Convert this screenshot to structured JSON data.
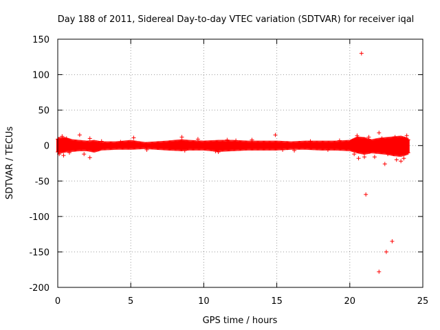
{
  "chart_data": {
    "type": "scatter",
    "title": "Day 188 of 2011, Sidereal Day-to-day VTEC variation (SDTVAR) for receiver iqal",
    "xlabel": "GPS time / hours",
    "ylabel": "SDTVAR / TECUs",
    "xlim": [
      0,
      25
    ],
    "ylim": [
      -200,
      150
    ],
    "xticks": [
      0,
      5,
      10,
      15,
      20,
      25
    ],
    "xtick_labels": [
      "0",
      "5",
      "10",
      "15",
      "20",
      "25"
    ],
    "yticks": [
      -200,
      -150,
      -100,
      -50,
      0,
      50,
      100,
      150
    ],
    "ytick_labels": [
      "-200",
      "-150",
      "-100",
      "-50",
      "0",
      "50",
      "100",
      "150"
    ],
    "grid": true,
    "marker": "+",
    "series": [
      {
        "name": "SDTVAR",
        "color": "#ff0000",
        "band": {
          "x_start": 0.0,
          "x_end": 24.0,
          "step": 0.05,
          "envelope": [
            [
              0.0,
              -9,
              9
            ],
            [
              0.5,
              -7,
              9
            ],
            [
              1.0,
              -6,
              6
            ],
            [
              1.5,
              -5,
              5
            ],
            [
              2.0,
              -5,
              4
            ],
            [
              2.5,
              -7,
              5
            ],
            [
              3.0,
              -4,
              3
            ],
            [
              4.0,
              -3,
              3
            ],
            [
              5.0,
              -3,
              5
            ],
            [
              6.0,
              -2,
              2
            ],
            [
              7.5,
              -4,
              4
            ],
            [
              8.5,
              -5,
              6
            ],
            [
              9.0,
              -4,
              5
            ],
            [
              10.0,
              -4,
              4
            ],
            [
              11.0,
              -6,
              5
            ],
            [
              12.0,
              -5,
              5
            ],
            [
              13.0,
              -4,
              4
            ],
            [
              14.0,
              -4,
              4
            ],
            [
              15.0,
              -4,
              4
            ],
            [
              16.0,
              -3,
              3
            ],
            [
              17.0,
              -3,
              4
            ],
            [
              18.0,
              -4,
              4
            ],
            [
              19.0,
              -4,
              4
            ],
            [
              20.0,
              -5,
              5
            ],
            [
              20.5,
              -8,
              10
            ],
            [
              21.0,
              -10,
              9
            ],
            [
              21.5,
              -8,
              6
            ],
            [
              22.0,
              -9,
              8
            ],
            [
              22.5,
              -10,
              9
            ],
            [
              23.0,
              -12,
              10
            ],
            [
              23.5,
              -13,
              11
            ],
            [
              24.0,
              -10,
              8
            ]
          ]
        },
        "points": [
          {
            "x": 0.1,
            "y": -12
          },
          {
            "x": 0.3,
            "y": 13
          },
          {
            "x": 0.4,
            "y": -14
          },
          {
            "x": 0.6,
            "y": 10
          },
          {
            "x": 0.8,
            "y": -10
          },
          {
            "x": 1.5,
            "y": 15
          },
          {
            "x": 1.8,
            "y": -12
          },
          {
            "x": 2.2,
            "y": 10
          },
          {
            "x": 2.2,
            "y": -17
          },
          {
            "x": 3.0,
            "y": 6
          },
          {
            "x": 4.3,
            "y": 5
          },
          {
            "x": 5.2,
            "y": 11
          },
          {
            "x": 6.1,
            "y": -6
          },
          {
            "x": 8.5,
            "y": 12
          },
          {
            "x": 8.7,
            "y": -7
          },
          {
            "x": 9.6,
            "y": 9
          },
          {
            "x": 10.8,
            "y": -8
          },
          {
            "x": 11.0,
            "y": -9
          },
          {
            "x": 11.6,
            "y": 8
          },
          {
            "x": 12.2,
            "y": 7
          },
          {
            "x": 13.3,
            "y": 8
          },
          {
            "x": 14.9,
            "y": 15
          },
          {
            "x": 15.4,
            "y": -6
          },
          {
            "x": 16.2,
            "y": -7
          },
          {
            "x": 17.3,
            "y": 6
          },
          {
            "x": 18.5,
            "y": -6
          },
          {
            "x": 19.3,
            "y": 7
          },
          {
            "x": 20.3,
            "y": -12
          },
          {
            "x": 20.5,
            "y": 14
          },
          {
            "x": 20.6,
            "y": -18
          },
          {
            "x": 20.8,
            "y": 130
          },
          {
            "x": 21.0,
            "y": -16
          },
          {
            "x": 21.1,
            "y": -69
          },
          {
            "x": 21.3,
            "y": 12
          },
          {
            "x": 21.7,
            "y": -16
          },
          {
            "x": 22.0,
            "y": 18
          },
          {
            "x": 22.0,
            "y": -178
          },
          {
            "x": 22.2,
            "y": 10
          },
          {
            "x": 22.4,
            "y": -26
          },
          {
            "x": 22.5,
            "y": -150
          },
          {
            "x": 22.6,
            "y": -12
          },
          {
            "x": 22.9,
            "y": -135
          },
          {
            "x": 23.1,
            "y": 12
          },
          {
            "x": 23.2,
            "y": -20
          },
          {
            "x": 23.5,
            "y": -22
          },
          {
            "x": 23.6,
            "y": 10
          },
          {
            "x": 23.7,
            "y": -18
          },
          {
            "x": 23.9,
            "y": 14
          }
        ]
      }
    ]
  }
}
